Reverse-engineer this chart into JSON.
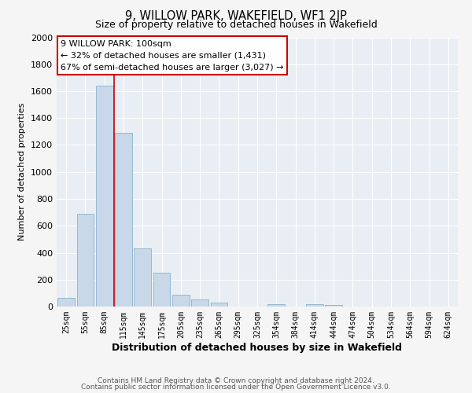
{
  "title": "9, WILLOW PARK, WAKEFIELD, WF1 2JP",
  "subtitle": "Size of property relative to detached houses in Wakefield",
  "xlabel": "Distribution of detached houses by size in Wakefield",
  "ylabel": "Number of detached properties",
  "bar_color": "#c8d8e8",
  "bar_edge_color": "#8ab4cc",
  "background_color": "#e8eef4",
  "grid_color": "#ffffff",
  "fig_color": "#f5f5f5",
  "categories": [
    "25sqm",
    "55sqm",
    "85sqm",
    "115sqm",
    "145sqm",
    "175sqm",
    "205sqm",
    "235sqm",
    "265sqm",
    "295sqm",
    "325sqm",
    "354sqm",
    "384sqm",
    "414sqm",
    "444sqm",
    "474sqm",
    "504sqm",
    "534sqm",
    "564sqm",
    "594sqm",
    "624sqm"
  ],
  "values": [
    65,
    690,
    1640,
    1290,
    430,
    250,
    90,
    50,
    30,
    0,
    0,
    20,
    0,
    20,
    10,
    0,
    0,
    0,
    0,
    0,
    0
  ],
  "ylim": [
    0,
    2000
  ],
  "yticks": [
    0,
    200,
    400,
    600,
    800,
    1000,
    1200,
    1400,
    1600,
    1800,
    2000
  ],
  "vline_color": "#cc0000",
  "annotation_title": "9 WILLOW PARK: 100sqm",
  "annotation_line1": "← 32% of detached houses are smaller (1,431)",
  "annotation_line2": "67% of semi-detached houses are larger (3,027) →",
  "annotation_box_color": "#ffffff",
  "annotation_box_edge_color": "#cc0000",
  "footer_line1": "Contains HM Land Registry data © Crown copyright and database right 2024.",
  "footer_line2": "Contains public sector information licensed under the Open Government Licence v3.0."
}
